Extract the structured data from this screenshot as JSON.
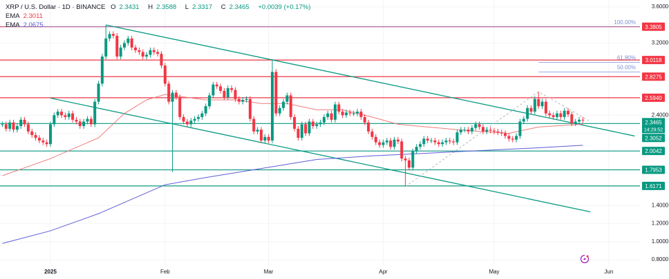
{
  "header": {
    "symbol": "XRP / U.S. Dollar · 1D · BINANCE",
    "o_label": "O",
    "o": "2.3431",
    "h_label": "H",
    "h": "2.3588",
    "l_label": "L",
    "l": "2.3317",
    "c_label": "C",
    "c": "2.3465",
    "change": "+0.0039 (+0.17%)",
    "ema1_label": "EMA",
    "ema1": "2.3011",
    "ema2_label": "EMA",
    "ema2": "2.0675"
  },
  "colors": {
    "up": "#089981",
    "down": "#f23645",
    "ema_fast": "#f07a7a",
    "ema_slow": "#5b5bd6",
    "resistance": "#f23645",
    "support": "#089981",
    "trendline": "#089981",
    "fib": "#7b8ed6"
  },
  "icons": {
    "bottom_right": "lightning-refresh-icon"
  },
  "chart_data": {
    "type": "candlestick",
    "ylim": [
      0.8,
      3.6
    ],
    "y_ticks": [
      "3.6000",
      "3.2000",
      "2.4000",
      "1.4000",
      "1.2000",
      "1.0000",
      "0.8000"
    ],
    "y_tick_values": [
      3.6,
      3.2,
      2.4,
      1.4,
      1.2,
      1.0,
      0.8
    ],
    "x_ticks": [
      {
        "label": "2025",
        "date": "2025-01-01",
        "bold": true
      },
      {
        "label": "Feb",
        "date": "2025-02-01"
      },
      {
        "label": "Mar",
        "date": "2025-03-01"
      },
      {
        "label": "Apr",
        "date": "2025-04-01"
      },
      {
        "label": "May",
        "date": "2025-05-01"
      },
      {
        "label": "Jun",
        "date": "2025-06-01"
      }
    ],
    "grid": true,
    "candles": [
      {
        "start": "2024-12-19",
        "closes": [
          2.3,
          2.25,
          2.32,
          2.24,
          2.28,
          2.35,
          2.3,
          2.22,
          2.18,
          2.15,
          2.12,
          2.1,
          2.08
        ]
      },
      {
        "start": "2025-01-01",
        "closes": [
          2.3,
          2.4,
          2.44,
          2.4,
          2.38,
          2.42,
          2.35,
          2.33,
          2.28,
          2.33,
          2.36,
          2.3,
          2.55,
          2.75,
          3.05,
          3.25,
          3.3,
          3.28,
          3.05,
          3.15,
          3.2,
          3.25,
          3.15,
          3.12,
          3.1,
          3.05,
          3.07,
          3.12,
          3.1,
          3.08,
          2.95
        ]
      },
      {
        "start": "2025-02-01",
        "closes": [
          2.75,
          2.55,
          2.65,
          2.6,
          2.38,
          2.33,
          2.3,
          2.34,
          2.36,
          2.38,
          2.42,
          2.5,
          2.62,
          2.74,
          2.72,
          2.67,
          2.6,
          2.7,
          2.68,
          2.58,
          2.55,
          2.57,
          2.58,
          2.36,
          2.22,
          2.24,
          2.12,
          2.16
        ]
      },
      {
        "start": "2025-03-01",
        "closes": [
          2.12,
          2.88,
          2.42,
          2.48,
          2.55,
          2.62,
          2.38,
          2.25,
          2.15,
          2.3,
          2.2,
          2.33,
          2.28,
          2.3,
          2.32,
          2.38,
          2.42,
          2.35,
          2.52,
          2.44,
          2.4,
          2.43,
          2.42,
          2.42,
          2.44,
          2.38,
          2.32,
          2.22,
          2.16,
          2.1,
          2.07
        ]
      },
      {
        "start": "2025-04-01",
        "closes": [
          2.1,
          2.12,
          2.05,
          2.13,
          2.11,
          1.92,
          1.9,
          1.82,
          2.0,
          2.05,
          2.08,
          2.14,
          2.12,
          2.12,
          2.1,
          2.08,
          2.1,
          2.12,
          2.11,
          2.1,
          2.21,
          2.24,
          2.24,
          2.22,
          2.26,
          2.3,
          2.27,
          2.22,
          2.24,
          2.23
        ]
      },
      {
        "start": "2025-05-01",
        "closes": [
          2.22,
          2.21,
          2.2,
          2.17,
          2.14,
          2.13,
          2.17,
          2.33,
          2.36,
          2.48,
          2.44,
          2.58,
          2.5,
          2.55,
          2.42,
          2.4,
          2.38,
          2.42,
          2.38,
          2.45,
          2.41,
          2.31,
          2.33,
          2.35,
          2.3465
        ]
      }
    ],
    "wicks": {
      "2025-01-16": {
        "high": 3.4
      },
      "2025-02-03": {
        "low": 1.77
      },
      "2025-03-02": {
        "high": 3.02
      },
      "2025-04-07": {
        "low": 1.61
      },
      "2025-05-13": {
        "high": 2.66
      }
    },
    "ema_fast": [
      [
        "2024-12-19",
        1.73
      ],
      [
        "2025-01-01",
        1.92
      ],
      [
        "2025-01-14",
        2.15
      ],
      [
        "2025-01-21",
        2.42
      ],
      [
        "2025-01-27",
        2.57
      ],
      [
        "2025-02-01",
        2.63
      ],
      [
        "2025-02-12",
        2.57
      ],
      [
        "2025-02-20",
        2.57
      ],
      [
        "2025-02-27",
        2.53
      ],
      [
        "2025-03-06",
        2.53
      ],
      [
        "2025-03-14",
        2.46
      ],
      [
        "2025-03-21",
        2.46
      ],
      [
        "2025-03-29",
        2.38
      ],
      [
        "2025-04-05",
        2.3
      ],
      [
        "2025-04-13",
        2.27
      ],
      [
        "2025-04-24",
        2.23
      ],
      [
        "2025-05-05",
        2.2
      ],
      [
        "2025-05-13",
        2.27
      ],
      [
        "2025-05-25",
        2.3011
      ]
    ],
    "ema_slow": [
      [
        "2024-12-19",
        0.98
      ],
      [
        "2025-01-01",
        1.12
      ],
      [
        "2025-01-14",
        1.31
      ],
      [
        "2025-02-01",
        1.63
      ],
      [
        "2025-02-12",
        1.71
      ],
      [
        "2025-02-27",
        1.81
      ],
      [
        "2025-03-14",
        1.91
      ],
      [
        "2025-03-29",
        1.95
      ],
      [
        "2025-04-13",
        1.98
      ],
      [
        "2025-04-28",
        2.01
      ],
      [
        "2025-05-13",
        2.04
      ],
      [
        "2025-05-25",
        2.0675
      ]
    ],
    "resistance_levels": [
      "3.3805",
      "3.0118",
      "2.8275",
      "2.5940"
    ],
    "support_levels": [
      "2.0042",
      "1.7953",
      "1.6171"
    ],
    "last_price": {
      "value": "2.3465",
      "countdown": "14:29:52"
    },
    "trendline_label": "2.3052",
    "trendlines": [
      {
        "from": [
          "2025-01-16",
          3.4
        ],
        "to": [
          "2025-06-08",
          2.17
        ]
      },
      {
        "from": [
          "2025-01-01",
          2.59
        ],
        "to": [
          "2025-05-27",
          1.33
        ]
      }
    ],
    "fib_levels": [
      {
        "label": "100.00%",
        "price": 3.3805,
        "from": "2024-12-19"
      },
      {
        "label": "61.80%",
        "price": 2.985,
        "from": "2025-05-13"
      },
      {
        "label": "50.00%",
        "price": 2.88,
        "from": "2025-05-13"
      }
    ],
    "dashed_path": [
      [
        "2025-04-07",
        1.61
      ],
      [
        "2025-05-13",
        2.66
      ],
      [
        "2025-05-27",
        2.33
      ]
    ]
  }
}
